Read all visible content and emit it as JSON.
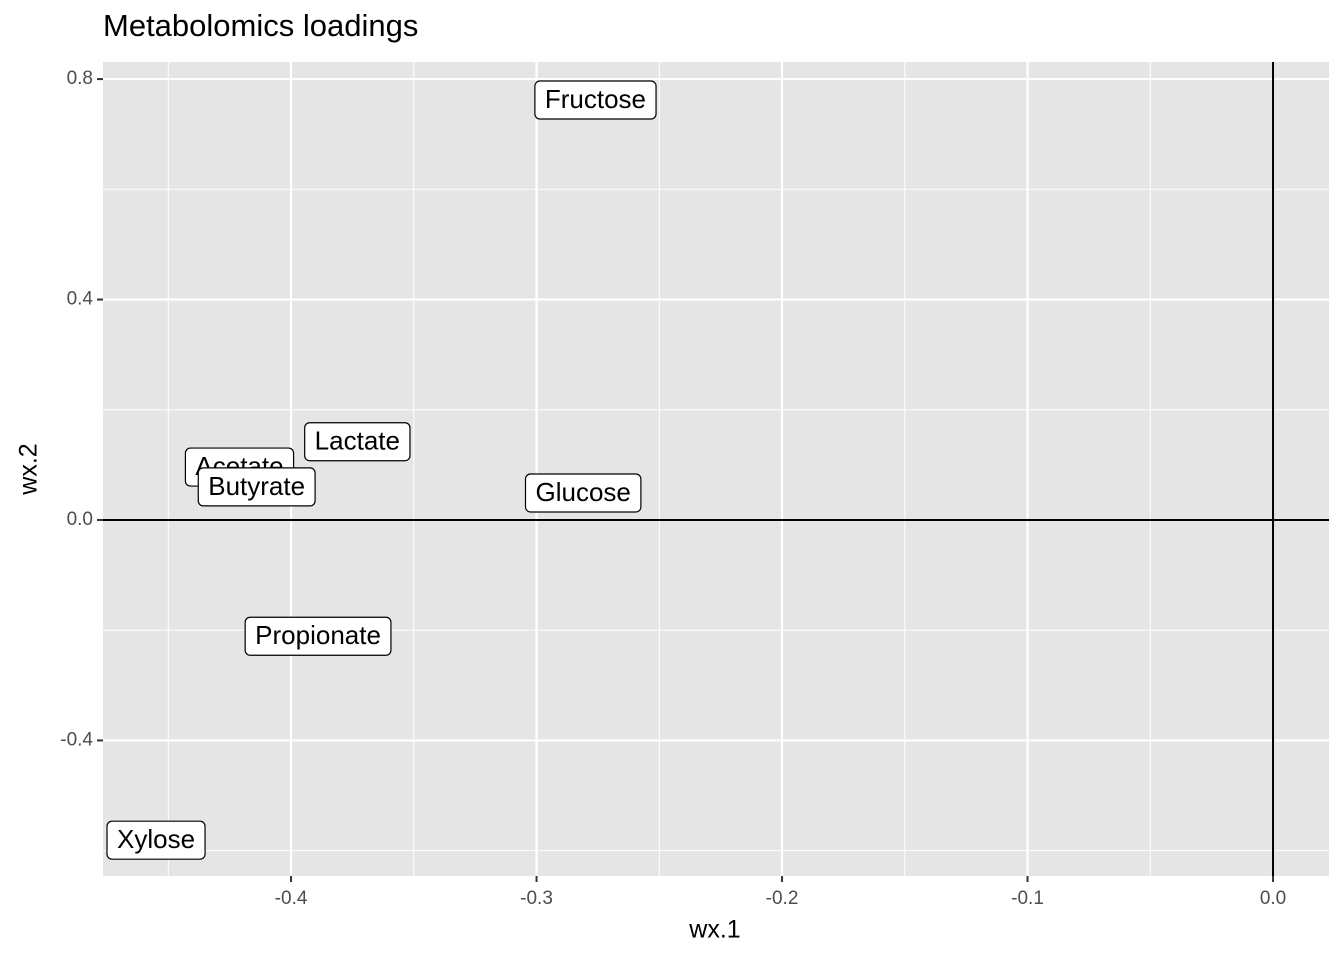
{
  "chart_data": {
    "type": "label",
    "title": "Metabolomics loadings",
    "x_label": "wx.1",
    "y_label": "wx.2",
    "labels": [
      "Fructose",
      "Lactate",
      "Acetate",
      "Butyrate",
      "Glucose",
      "Propionate",
      "Xylose"
    ],
    "x": [
      -0.276,
      -0.373,
      -0.421,
      -0.414,
      -0.281,
      -0.389,
      -0.455
    ],
    "y": [
      0.762,
      0.142,
      0.096,
      0.06,
      0.049,
      -0.211,
      -0.581
    ],
    "xlim": [
      -0.4766,
      0.0228
    ],
    "ylim": [
      -0.646,
      0.831
    ],
    "xticks": [
      -0.4,
      -0.3,
      -0.2,
      -0.1,
      {
        "value": 0,
        "label": "0.0"
      }
    ],
    "yticks": [
      -0.4,
      {
        "value": 0,
        "label": "0.0"
      },
      0.4,
      0.8
    ],
    "xminor": [
      -0.45,
      -0.35,
      -0.25,
      -0.15,
      -0.05
    ],
    "yminor": [
      -0.6,
      -0.2,
      0.2,
      0.6
    ],
    "hline": 0,
    "vline": 0,
    "grid": true
  }
}
